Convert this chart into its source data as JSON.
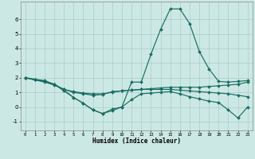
{
  "xlabel": "Humidex (Indice chaleur)",
  "bg_color": "#cce8e4",
  "line_color": "#1a6e63",
  "grid_color": "#aacccc",
  "xlim": [
    -0.5,
    23.5
  ],
  "ylim": [
    -1.6,
    7.2
  ],
  "xticks": [
    0,
    1,
    2,
    3,
    4,
    5,
    6,
    7,
    8,
    9,
    10,
    11,
    12,
    13,
    14,
    15,
    16,
    17,
    18,
    19,
    20,
    21,
    22,
    23
  ],
  "yticks": [
    -1,
    0,
    1,
    2,
    3,
    4,
    5,
    6
  ],
  "series": [
    {
      "x": [
        0,
        1,
        2,
        3,
        4,
        5,
        6,
        7,
        8,
        9,
        10,
        11,
        12,
        13,
        14,
        15,
        16,
        17,
        18,
        19,
        20,
        21,
        22,
        23
      ],
      "y": [
        2.0,
        1.9,
        1.8,
        1.55,
        1.15,
        0.65,
        0.25,
        -0.2,
        -0.45,
        -0.25,
        0.0,
        1.7,
        1.7,
        3.6,
        5.3,
        6.7,
        6.7,
        5.7,
        3.8,
        2.6,
        1.75,
        1.7,
        1.75,
        1.8
      ]
    },
    {
      "x": [
        0,
        1,
        2,
        3,
        4,
        5,
        6,
        7,
        8,
        9,
        10,
        11,
        12,
        13,
        14,
        15,
        16,
        17,
        18,
        19,
        20,
        21,
        22,
        23
      ],
      "y": [
        2.0,
        1.85,
        1.7,
        1.5,
        1.2,
        1.05,
        0.95,
        0.9,
        0.9,
        1.0,
        1.1,
        1.15,
        1.2,
        1.25,
        1.3,
        1.35,
        1.35,
        1.35,
        1.35,
        1.4,
        1.45,
        1.5,
        1.55,
        1.7
      ]
    },
    {
      "x": [
        0,
        1,
        2,
        3,
        4,
        5,
        6,
        7,
        8,
        9,
        10,
        11,
        12,
        13,
        14,
        15,
        16,
        17,
        18,
        19,
        20,
        21,
        22,
        23
      ],
      "y": [
        2.0,
        1.85,
        1.75,
        1.55,
        1.2,
        1.0,
        0.9,
        0.8,
        0.85,
        1.05,
        1.1,
        1.15,
        1.2,
        1.2,
        1.2,
        1.2,
        1.15,
        1.1,
        1.05,
        1.0,
        0.95,
        0.9,
        0.8,
        0.7
      ]
    },
    {
      "x": [
        0,
        1,
        2,
        3,
        4,
        5,
        6,
        7,
        8,
        9,
        10,
        11,
        12,
        13,
        14,
        15,
        16,
        17,
        18,
        19,
        20,
        21,
        22,
        23
      ],
      "y": [
        2.0,
        1.85,
        1.75,
        1.55,
        1.1,
        0.65,
        0.25,
        -0.2,
        -0.45,
        -0.15,
        0.0,
        0.5,
        0.9,
        0.95,
        1.0,
        1.05,
        0.9,
        0.7,
        0.55,
        0.4,
        0.3,
        -0.2,
        -0.75,
        0.0
      ]
    }
  ]
}
